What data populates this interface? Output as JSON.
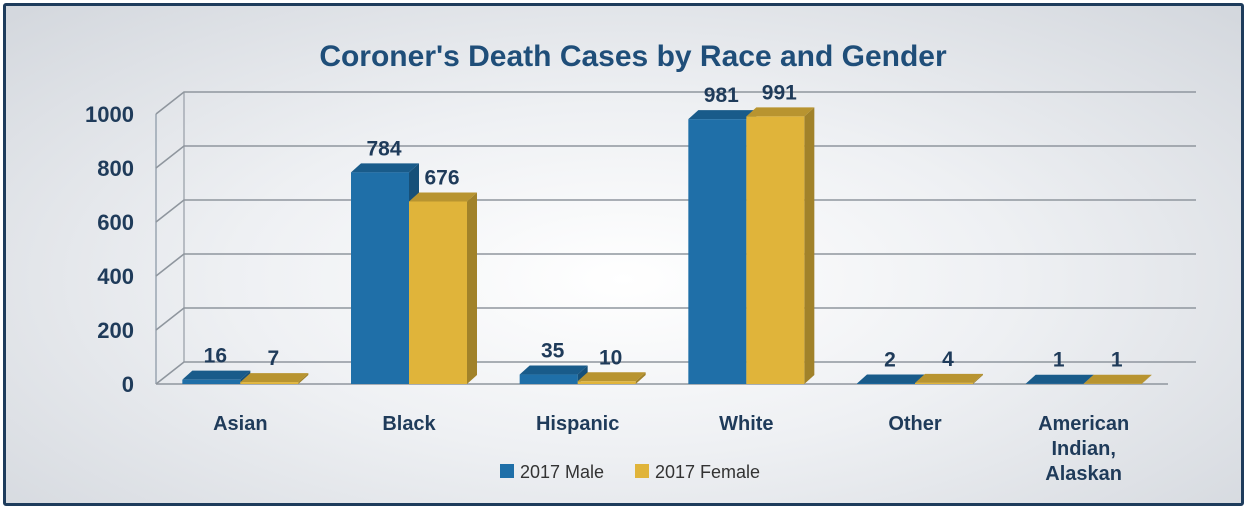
{
  "chart_data": {
    "type": "bar",
    "title": "Coroner's Death Cases by Race and Gender",
    "xlabel": "",
    "ylabel": "",
    "categories": [
      "Asian",
      "Black",
      "Hispanic",
      "White",
      "Other",
      "American Indian, Alaskan"
    ],
    "category_lines": [
      [
        "Asian"
      ],
      [
        "Black"
      ],
      [
        "Hispanic"
      ],
      [
        "White"
      ],
      [
        "Other"
      ],
      [
        "American",
        "Indian,",
        "Alaskan"
      ]
    ],
    "series": [
      {
        "name": "2017 Male",
        "values": [
          16,
          784,
          35,
          981,
          2,
          1
        ],
        "color": "#1f6fa8"
      },
      {
        "name": "2017 Female",
        "values": [
          7,
          676,
          10,
          991,
          4,
          1
        ],
        "color": "#e0b43a"
      }
    ],
    "ylim": [
      0,
      1000
    ],
    "yticks": [
      0,
      200,
      400,
      600,
      800,
      1000
    ],
    "grid": true,
    "legend": "bottom",
    "style": "3d-clustered-column"
  }
}
